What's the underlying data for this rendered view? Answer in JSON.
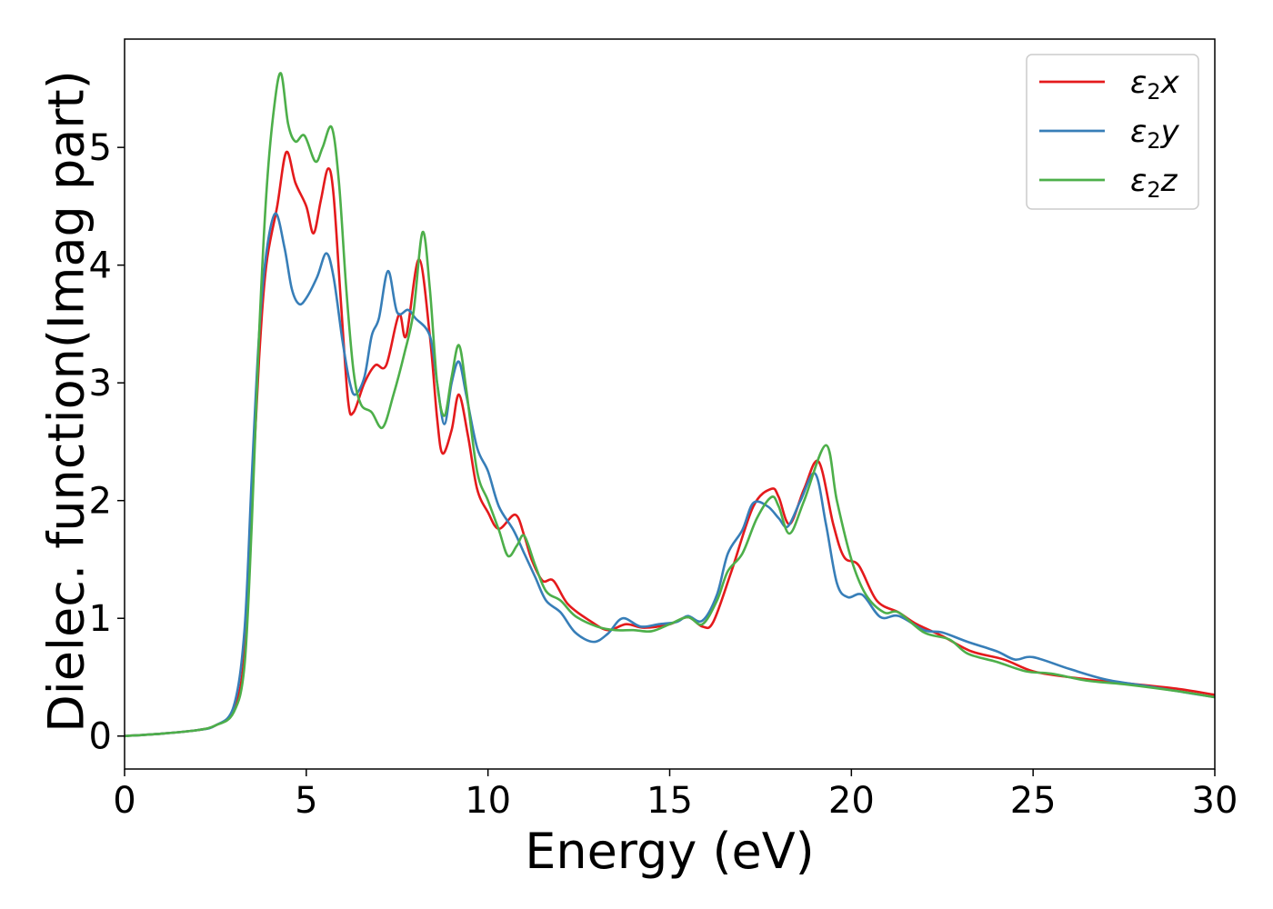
{
  "chart_data": {
    "type": "line",
    "title": "",
    "xlabel": "Energy (eV)",
    "ylabel": "Dielec. function(Imag part)",
    "xlim": [
      0,
      30
    ],
    "ylim": [
      -0.28,
      5.92
    ],
    "xticks": [
      0,
      5,
      10,
      15,
      20,
      25,
      30
    ],
    "yticks": [
      0,
      1,
      2,
      3,
      4,
      5
    ],
    "grid": false,
    "legend_position": "top-right",
    "series": [
      {
        "name": "ε₂x",
        "label_base": "ε",
        "label_sub": "2",
        "label_suffix": "x",
        "color": "#e41a1c",
        "points": [
          [
            0,
            0
          ],
          [
            1,
            0.02
          ],
          [
            2,
            0.05
          ],
          [
            2.5,
            0.09
          ],
          [
            3,
            0.22
          ],
          [
            3.3,
            0.7
          ],
          [
            3.5,
            2.0
          ],
          [
            3.7,
            3.2
          ],
          [
            3.9,
            4.0
          ],
          [
            4.2,
            4.5
          ],
          [
            4.45,
            4.96
          ],
          [
            4.7,
            4.7
          ],
          [
            5.0,
            4.5
          ],
          [
            5.2,
            4.27
          ],
          [
            5.4,
            4.55
          ],
          [
            5.6,
            4.82
          ],
          [
            5.75,
            4.6
          ],
          [
            5.95,
            3.7
          ],
          [
            6.15,
            2.85
          ],
          [
            6.3,
            2.75
          ],
          [
            6.6,
            3.0
          ],
          [
            6.9,
            3.15
          ],
          [
            7.2,
            3.15
          ],
          [
            7.55,
            3.58
          ],
          [
            7.75,
            3.4
          ],
          [
            8.1,
            4.05
          ],
          [
            8.4,
            3.4
          ],
          [
            8.6,
            2.7
          ],
          [
            8.75,
            2.4
          ],
          [
            9.0,
            2.6
          ],
          [
            9.2,
            2.9
          ],
          [
            9.45,
            2.55
          ],
          [
            9.7,
            2.1
          ],
          [
            10.0,
            1.9
          ],
          [
            10.3,
            1.76
          ],
          [
            10.75,
            1.88
          ],
          [
            11.0,
            1.7
          ],
          [
            11.2,
            1.5
          ],
          [
            11.5,
            1.32
          ],
          [
            11.8,
            1.32
          ],
          [
            12.2,
            1.12
          ],
          [
            12.8,
            0.98
          ],
          [
            13.3,
            0.9
          ],
          [
            13.8,
            0.95
          ],
          [
            14.3,
            0.92
          ],
          [
            15.0,
            0.95
          ],
          [
            15.5,
            1.01
          ],
          [
            15.9,
            0.93
          ],
          [
            16.2,
            0.97
          ],
          [
            16.7,
            1.4
          ],
          [
            17.3,
            1.95
          ],
          [
            17.8,
            2.1
          ],
          [
            18.0,
            2.03
          ],
          [
            18.3,
            1.8
          ],
          [
            18.7,
            2.1
          ],
          [
            19.1,
            2.33
          ],
          [
            19.5,
            1.8
          ],
          [
            19.8,
            1.52
          ],
          [
            20.2,
            1.45
          ],
          [
            20.7,
            1.15
          ],
          [
            21.3,
            1.05
          ],
          [
            21.8,
            0.95
          ],
          [
            22.5,
            0.85
          ],
          [
            23.3,
            0.72
          ],
          [
            24.2,
            0.65
          ],
          [
            25.0,
            0.55
          ],
          [
            26.0,
            0.5
          ],
          [
            27.5,
            0.45
          ],
          [
            29.0,
            0.4
          ],
          [
            30.0,
            0.35
          ]
        ]
      },
      {
        "name": "ε₂y",
        "label_base": "ε",
        "label_sub": "2",
        "label_suffix": "y",
        "color": "#377eb8",
        "points": [
          [
            0,
            0
          ],
          [
            1,
            0.02
          ],
          [
            2,
            0.05
          ],
          [
            2.5,
            0.09
          ],
          [
            3,
            0.25
          ],
          [
            3.3,
            0.9
          ],
          [
            3.5,
            2.2
          ],
          [
            3.7,
            3.4
          ],
          [
            3.9,
            4.1
          ],
          [
            4.15,
            4.44
          ],
          [
            4.4,
            4.15
          ],
          [
            4.6,
            3.8
          ],
          [
            4.8,
            3.67
          ],
          [
            5.0,
            3.72
          ],
          [
            5.3,
            3.9
          ],
          [
            5.55,
            4.1
          ],
          [
            5.75,
            3.9
          ],
          [
            6.0,
            3.35
          ],
          [
            6.2,
            3.0
          ],
          [
            6.35,
            2.9
          ],
          [
            6.6,
            3.05
          ],
          [
            6.8,
            3.4
          ],
          [
            7.0,
            3.55
          ],
          [
            7.25,
            3.95
          ],
          [
            7.5,
            3.6
          ],
          [
            7.8,
            3.62
          ],
          [
            8.0,
            3.55
          ],
          [
            8.4,
            3.4
          ],
          [
            8.6,
            3.0
          ],
          [
            8.8,
            2.65
          ],
          [
            9.0,
            3.0
          ],
          [
            9.2,
            3.18
          ],
          [
            9.4,
            2.9
          ],
          [
            9.7,
            2.45
          ],
          [
            10.0,
            2.25
          ],
          [
            10.3,
            1.95
          ],
          [
            10.7,
            1.75
          ],
          [
            11.0,
            1.55
          ],
          [
            11.3,
            1.35
          ],
          [
            11.6,
            1.15
          ],
          [
            12.0,
            1.05
          ],
          [
            12.4,
            0.88
          ],
          [
            12.9,
            0.8
          ],
          [
            13.3,
            0.87
          ],
          [
            13.7,
            1.0
          ],
          [
            14.2,
            0.93
          ],
          [
            14.7,
            0.95
          ],
          [
            15.2,
            0.97
          ],
          [
            15.5,
            1.02
          ],
          [
            15.9,
            0.98
          ],
          [
            16.3,
            1.2
          ],
          [
            16.6,
            1.55
          ],
          [
            17.0,
            1.75
          ],
          [
            17.3,
            1.98
          ],
          [
            17.7,
            1.95
          ],
          [
            18.0,
            1.85
          ],
          [
            18.25,
            1.78
          ],
          [
            18.6,
            2.0
          ],
          [
            19.0,
            2.23
          ],
          [
            19.3,
            1.8
          ],
          [
            19.6,
            1.3
          ],
          [
            19.9,
            1.18
          ],
          [
            20.3,
            1.2
          ],
          [
            20.8,
            1.01
          ],
          [
            21.3,
            1.02
          ],
          [
            22.0,
            0.9
          ],
          [
            22.5,
            0.88
          ],
          [
            23.2,
            0.8
          ],
          [
            24.0,
            0.72
          ],
          [
            24.5,
            0.65
          ],
          [
            25.0,
            0.67
          ],
          [
            26.0,
            0.57
          ],
          [
            27.0,
            0.48
          ],
          [
            28.0,
            0.43
          ],
          [
            29.0,
            0.38
          ],
          [
            30.0,
            0.33
          ]
        ]
      },
      {
        "name": "ε₂z",
        "label_base": "ε",
        "label_sub": "2",
        "label_suffix": "z",
        "color": "#4daf4a",
        "points": [
          [
            0,
            0
          ],
          [
            1,
            0.02
          ],
          [
            2,
            0.05
          ],
          [
            2.5,
            0.09
          ],
          [
            3,
            0.2
          ],
          [
            3.3,
            0.6
          ],
          [
            3.5,
            1.8
          ],
          [
            3.7,
            3.4
          ],
          [
            3.9,
            4.6
          ],
          [
            4.1,
            5.3
          ],
          [
            4.3,
            5.63
          ],
          [
            4.5,
            5.2
          ],
          [
            4.7,
            5.05
          ],
          [
            4.95,
            5.1
          ],
          [
            5.25,
            4.88
          ],
          [
            5.45,
            5.0
          ],
          [
            5.7,
            5.17
          ],
          [
            5.9,
            4.7
          ],
          [
            6.1,
            3.8
          ],
          [
            6.3,
            3.1
          ],
          [
            6.5,
            2.82
          ],
          [
            6.8,
            2.75
          ],
          [
            7.1,
            2.62
          ],
          [
            7.4,
            2.9
          ],
          [
            7.7,
            3.25
          ],
          [
            7.95,
            3.6
          ],
          [
            8.2,
            4.28
          ],
          [
            8.4,
            3.8
          ],
          [
            8.6,
            3.0
          ],
          [
            8.8,
            2.72
          ],
          [
            9.0,
            3.05
          ],
          [
            9.2,
            3.32
          ],
          [
            9.4,
            2.95
          ],
          [
            9.7,
            2.25
          ],
          [
            10.0,
            2.0
          ],
          [
            10.3,
            1.75
          ],
          [
            10.55,
            1.53
          ],
          [
            10.8,
            1.62
          ],
          [
            11.0,
            1.7
          ],
          [
            11.3,
            1.45
          ],
          [
            11.6,
            1.23
          ],
          [
            12.0,
            1.15
          ],
          [
            12.4,
            1.02
          ],
          [
            13.0,
            0.93
          ],
          [
            13.5,
            0.9
          ],
          [
            14.0,
            0.9
          ],
          [
            14.5,
            0.89
          ],
          [
            15.0,
            0.95
          ],
          [
            15.5,
            1.01
          ],
          [
            15.9,
            0.95
          ],
          [
            16.3,
            1.15
          ],
          [
            16.6,
            1.4
          ],
          [
            17.0,
            1.55
          ],
          [
            17.4,
            1.85
          ],
          [
            17.8,
            2.03
          ],
          [
            18.0,
            1.95
          ],
          [
            18.3,
            1.72
          ],
          [
            18.7,
            2.0
          ],
          [
            19.3,
            2.47
          ],
          [
            19.6,
            2.0
          ],
          [
            20.0,
            1.5
          ],
          [
            20.4,
            1.2
          ],
          [
            20.9,
            1.05
          ],
          [
            21.3,
            1.05
          ],
          [
            22.0,
            0.88
          ],
          [
            22.7,
            0.82
          ],
          [
            23.2,
            0.7
          ],
          [
            24.0,
            0.63
          ],
          [
            24.8,
            0.55
          ],
          [
            25.5,
            0.53
          ],
          [
            26.5,
            0.47
          ],
          [
            27.5,
            0.44
          ],
          [
            29.0,
            0.38
          ],
          [
            30.0,
            0.33
          ]
        ]
      }
    ]
  }
}
